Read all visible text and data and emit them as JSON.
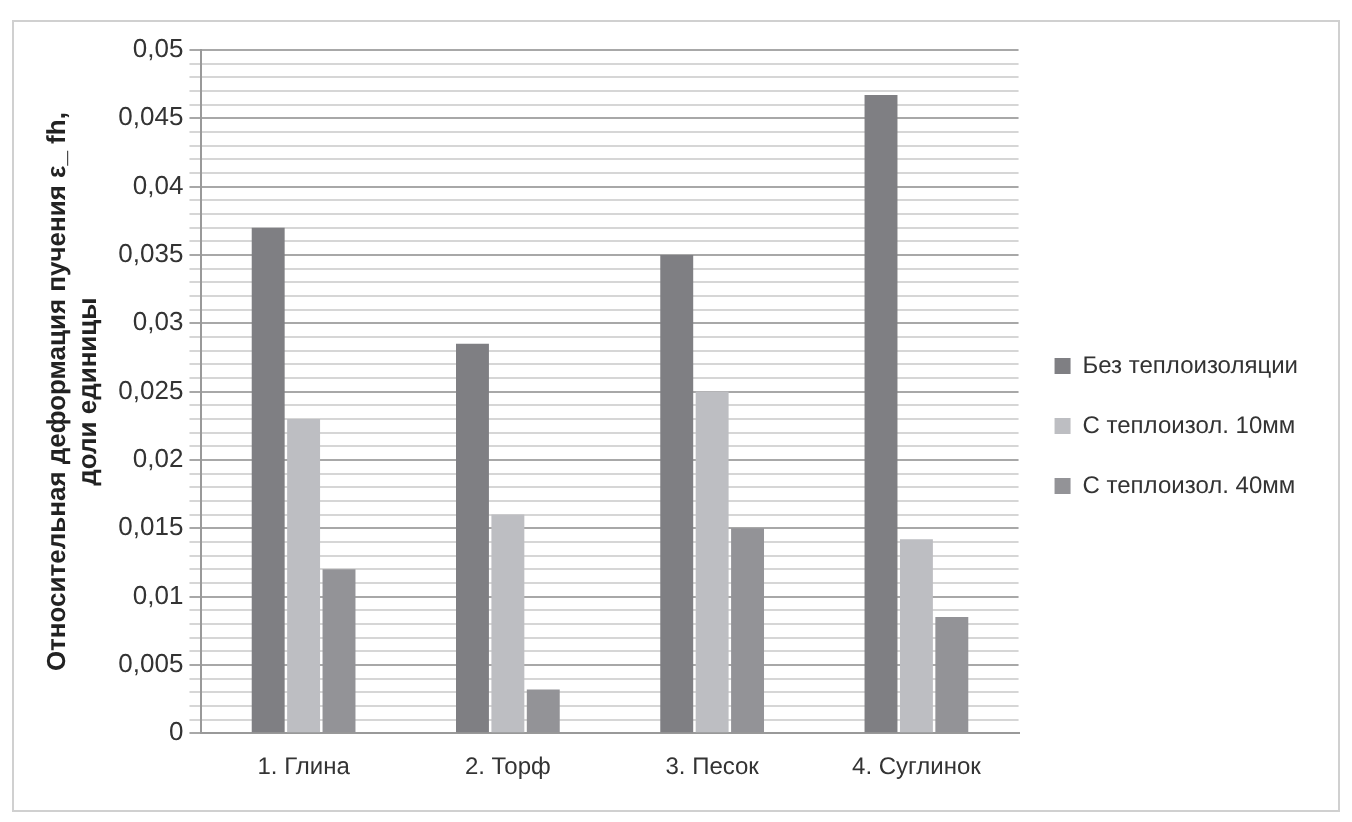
{
  "chart_data": {
    "type": "bar",
    "ylabel": "Относительная деформация пучения ε_ fh, доли единицы",
    "categories": [
      "1. Глина",
      "2. Торф",
      "3. Песок",
      "4. Суглинок"
    ],
    "series": [
      {
        "name": "Без теплоизоляции",
        "color": "#7f7f83",
        "values": [
          0.037,
          0.0285,
          0.035,
          0.0467
        ]
      },
      {
        "name": "С теплоизол. 10мм",
        "color": "#bdbec2",
        "values": [
          0.023,
          0.016,
          0.025,
          0.0142
        ]
      },
      {
        "name": "С теплоизол. 40мм",
        "color": "#939397",
        "values": [
          0.012,
          0.0032,
          0.015,
          0.0085
        ]
      }
    ],
    "ylim": [
      0,
      0.05
    ],
    "yticks": [
      {
        "value": 0,
        "label": "0"
      },
      {
        "value": 0.001,
        "label": null
      },
      {
        "value": 0.002,
        "label": null
      },
      {
        "value": 0.003,
        "label": null
      },
      {
        "value": 0.004,
        "label": null
      },
      {
        "value": 0.005,
        "label": "0,005"
      },
      {
        "value": 0.006,
        "label": null
      },
      {
        "value": 0.007,
        "label": null
      },
      {
        "value": 0.008,
        "label": null
      },
      {
        "value": 0.009,
        "label": null
      },
      {
        "value": 0.01,
        "label": "0,01"
      },
      {
        "value": 0.011,
        "label": null
      },
      {
        "value": 0.012,
        "label": null
      },
      {
        "value": 0.013,
        "label": null
      },
      {
        "value": 0.014,
        "label": null
      },
      {
        "value": 0.015,
        "label": "0,015"
      },
      {
        "value": 0.016,
        "label": null
      },
      {
        "value": 0.017,
        "label": null
      },
      {
        "value": 0.018,
        "label": null
      },
      {
        "value": 0.019,
        "label": null
      },
      {
        "value": 0.02,
        "label": "0,02"
      },
      {
        "value": 0.021,
        "label": null
      },
      {
        "value": 0.022,
        "label": null
      },
      {
        "value": 0.023,
        "label": null
      },
      {
        "value": 0.024,
        "label": null
      },
      {
        "value": 0.025,
        "label": "0,025"
      },
      {
        "value": 0.026,
        "label": null
      },
      {
        "value": 0.027,
        "label": null
      },
      {
        "value": 0.028,
        "label": null
      },
      {
        "value": 0.029,
        "label": null
      },
      {
        "value": 0.03,
        "label": "0,03"
      },
      {
        "value": 0.031,
        "label": null
      },
      {
        "value": 0.032,
        "label": null
      },
      {
        "value": 0.033,
        "label": null
      },
      {
        "value": 0.034,
        "label": null
      },
      {
        "value": 0.035,
        "label": "0,035"
      },
      {
        "value": 0.036,
        "label": null
      },
      {
        "value": 0.037,
        "label": null
      },
      {
        "value": 0.038,
        "label": null
      },
      {
        "value": 0.039,
        "label": null
      },
      {
        "value": 0.04,
        "label": "0,04"
      },
      {
        "value": 0.041,
        "label": null
      },
      {
        "value": 0.042,
        "label": null
      },
      {
        "value": 0.043,
        "label": null
      },
      {
        "value": 0.044,
        "label": null
      },
      {
        "value": 0.045,
        "label": "0,045"
      },
      {
        "value": 0.046,
        "label": null
      },
      {
        "value": 0.047,
        "label": null
      },
      {
        "value": 0.048,
        "label": null
      },
      {
        "value": 0.049,
        "label": null
      },
      {
        "value": 0.05,
        "label": "0,05"
      }
    ],
    "grid": "y",
    "legend": "right"
  }
}
